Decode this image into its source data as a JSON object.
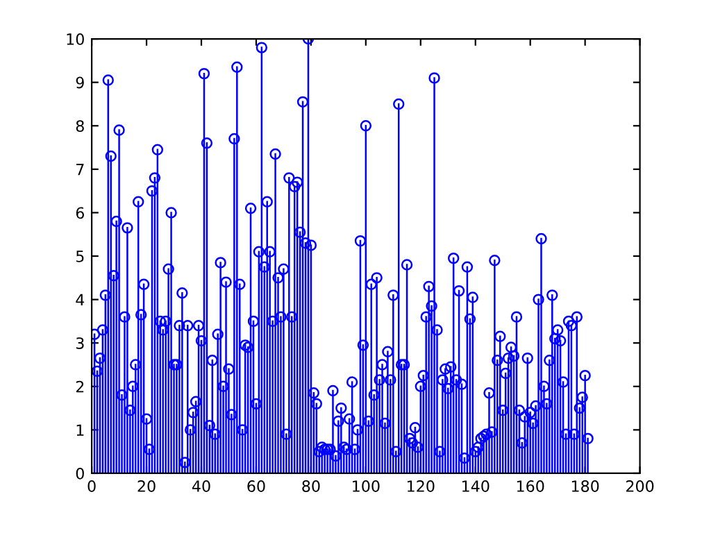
{
  "chart_data": {
    "type": "lollipop",
    "marker": "circle",
    "xlim": [
      0,
      200
    ],
    "ylim": [
      0,
      10
    ],
    "xticks": [
      0,
      20,
      40,
      60,
      80,
      100,
      120,
      140,
      160,
      180,
      200
    ],
    "yticks": [
      0,
      1,
      2,
      3,
      4,
      5,
      6,
      7,
      8,
      9,
      10
    ],
    "series": [
      {
        "color": "#0000ff",
        "x": [
          1,
          2,
          3,
          4,
          5,
          6,
          7,
          8,
          9,
          10,
          11,
          12,
          13,
          14,
          15,
          16,
          17,
          18,
          19,
          20,
          21,
          22,
          23,
          24,
          25,
          26,
          27,
          28,
          29,
          30,
          31,
          32,
          33,
          34,
          35,
          36,
          37,
          38,
          39,
          40,
          41,
          42,
          43,
          44,
          45,
          46,
          47,
          48,
          49,
          50,
          51,
          52,
          53,
          54,
          55,
          56,
          57,
          58,
          59,
          60,
          61,
          62,
          63,
          64,
          65,
          66,
          67,
          68,
          69,
          70,
          71,
          72,
          73,
          74,
          75,
          76,
          77,
          78,
          79,
          80,
          81,
          82,
          83,
          84,
          85,
          86,
          87,
          88,
          89,
          90,
          91,
          92,
          93,
          94,
          95,
          96,
          97,
          98,
          99,
          100,
          101,
          102,
          103,
          104,
          105,
          106,
          107,
          108,
          109,
          110,
          111,
          112,
          113,
          114,
          115,
          116,
          117,
          118,
          119,
          120,
          121,
          122,
          123,
          124,
          125,
          126,
          127,
          128,
          129,
          130,
          131,
          132,
          133,
          134,
          135,
          136,
          137,
          138,
          139,
          140,
          141,
          142,
          143,
          144,
          145,
          146,
          147,
          148,
          149,
          150,
          151,
          152,
          153,
          154,
          155,
          156,
          157,
          158,
          159,
          160,
          161,
          162,
          163,
          164,
          165,
          166,
          167,
          168,
          169,
          170,
          171,
          172,
          173,
          174,
          175,
          176,
          177,
          178,
          179,
          180,
          181
        ],
        "values": [
          3.2,
          2.35,
          2.65,
          3.3,
          4.1,
          9.05,
          7.3,
          4.55,
          5.8,
          7.9,
          1.8,
          3.6,
          5.65,
          1.45,
          2.0,
          2.5,
          6.25,
          3.65,
          4.35,
          1.25,
          0.55,
          6.5,
          6.8,
          7.45,
          3.5,
          3.3,
          3.5,
          4.7,
          6.0,
          2.5,
          2.5,
          3.4,
          4.15,
          0.25,
          3.4,
          1.0,
          1.4,
          1.65,
          3.4,
          3.05,
          9.2,
          7.6,
          1.1,
          2.6,
          0.9,
          3.2,
          4.85,
          2.0,
          4.4,
          2.4,
          1.35,
          7.7,
          9.35,
          4.35,
          1.0,
          2.95,
          2.9,
          6.1,
          3.5,
          1.6,
          5.1,
          9.8,
          4.75,
          6.25,
          5.1,
          3.5,
          7.35,
          4.5,
          3.6,
          4.7,
          0.9,
          6.8,
          3.6,
          6.6,
          6.7,
          5.55,
          8.55,
          5.3,
          10.0,
          5.25,
          1.85,
          1.6,
          0.5,
          0.6,
          0.55,
          0.55,
          0.55,
          1.9,
          0.4,
          1.2,
          1.5,
          0.6,
          0.55,
          1.25,
          2.1,
          0.55,
          1.0,
          5.35,
          2.95,
          8.0,
          1.2,
          4.35,
          1.8,
          4.5,
          2.15,
          2.5,
          1.15,
          2.8,
          2.15,
          4.1,
          0.5,
          8.5,
          2.5,
          2.5,
          4.8,
          0.8,
          0.7,
          1.05,
          0.6,
          2.0,
          2.25,
          3.6,
          4.3,
          3.85,
          9.1,
          3.3,
          0.5,
          2.15,
          2.4,
          1.95,
          2.45,
          4.95,
          2.15,
          4.2,
          2.05,
          0.35,
          4.75,
          3.55,
          4.05,
          0.5,
          0.6,
          0.8,
          0.85,
          0.9,
          1.85,
          0.95,
          4.9,
          2.6,
          3.15,
          1.45,
          2.3,
          2.65,
          2.9,
          2.7,
          3.6,
          1.45,
          0.7,
          1.3,
          2.65,
          1.4,
          1.15,
          1.55,
          4.0,
          5.4,
          2.0,
          1.6,
          2.6,
          4.1,
          3.1,
          3.3,
          3.05,
          2.1,
          0.9,
          3.5,
          3.4,
          0.9,
          3.6,
          1.5,
          1.75,
          2.25,
          0.8
        ]
      }
    ]
  }
}
